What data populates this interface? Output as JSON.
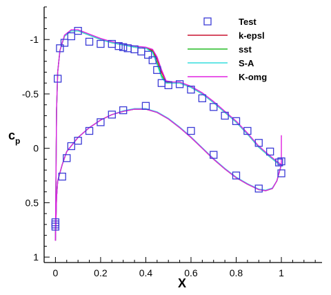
{
  "chart_data": {
    "type": "line",
    "xlabel": "X",
    "ylabel_main": "c",
    "ylabel_sub": "p",
    "xlim": [
      -0.05,
      1.18
    ],
    "ylim": [
      1.05,
      -1.3
    ],
    "y_inverted": true,
    "grid": false,
    "legend_position": "top-right",
    "x_ticks": [
      0,
      0.2,
      0.4,
      0.6,
      0.8,
      1
    ],
    "x_tick_labels": [
      "0",
      "0.2",
      "0.4",
      "0.6",
      "0.8",
      "1"
    ],
    "y_ticks": [
      -1,
      -0.5,
      0,
      0.5,
      1
    ],
    "y_tick_labels": [
      "-1",
      "-0.5",
      "0",
      "0.5",
      "1"
    ],
    "colors": {
      "test": "#3a3ad6",
      "k_epsl": "#c8102e",
      "sst": "#22bb22",
      "sa": "#33dddd",
      "k_omg": "#e020e0"
    },
    "series": [
      {
        "name": "Test",
        "kind": "marker",
        "marker": "square",
        "points": [
          [
            0.0,
            0.68
          ],
          [
            0.0,
            0.7
          ],
          [
            0.0,
            0.72
          ],
          [
            0.01,
            -0.64
          ],
          [
            0.02,
            -0.92
          ],
          [
            0.04,
            -0.97
          ],
          [
            0.07,
            -1.03
          ],
          [
            0.1,
            -1.08
          ],
          [
            0.15,
            -0.98
          ],
          [
            0.2,
            -0.96
          ],
          [
            0.25,
            -0.96
          ],
          [
            0.28,
            -0.94
          ],
          [
            0.3,
            -0.93
          ],
          [
            0.32,
            -0.92
          ],
          [
            0.35,
            -0.91
          ],
          [
            0.38,
            -0.89
          ],
          [
            0.41,
            -0.86
          ],
          [
            0.43,
            -0.81
          ],
          [
            0.45,
            -0.72
          ],
          [
            0.47,
            -0.6
          ],
          [
            0.5,
            -0.58
          ],
          [
            0.55,
            -0.59
          ],
          [
            0.6,
            -0.54
          ],
          [
            0.65,
            -0.46
          ],
          [
            0.7,
            -0.38
          ],
          [
            0.75,
            -0.3
          ],
          [
            0.8,
            -0.25
          ],
          [
            0.85,
            -0.16
          ],
          [
            0.9,
            -0.05
          ],
          [
            0.95,
            0.03
          ],
          [
            0.99,
            0.13
          ],
          [
            1.0,
            0.23
          ],
          [
            0.03,
            0.26
          ],
          [
            0.05,
            0.09
          ],
          [
            0.07,
            -0.02
          ],
          [
            0.1,
            -0.07
          ],
          [
            0.15,
            -0.16
          ],
          [
            0.2,
            -0.24
          ],
          [
            0.25,
            -0.31
          ],
          [
            0.3,
            -0.35
          ],
          [
            0.4,
            -0.39
          ],
          [
            0.6,
            -0.16
          ],
          [
            0.7,
            0.06
          ],
          [
            0.8,
            0.25
          ],
          [
            0.9,
            0.37
          ],
          [
            1.0,
            0.12
          ]
        ]
      },
      {
        "name": "k-epsl",
        "kind": "line",
        "upper": [
          [
            0.0,
            0.85
          ],
          [
            0.005,
            -0.35
          ],
          [
            0.01,
            -0.7
          ],
          [
            0.02,
            -0.9
          ],
          [
            0.04,
            -1.03
          ],
          [
            0.07,
            -1.08
          ],
          [
            0.1,
            -1.08
          ],
          [
            0.15,
            -1.04
          ],
          [
            0.2,
            -1.0
          ],
          [
            0.25,
            -0.97
          ],
          [
            0.3,
            -0.95
          ],
          [
            0.35,
            -0.93
          ],
          [
            0.4,
            -0.92
          ],
          [
            0.43,
            -0.9
          ],
          [
            0.45,
            -0.82
          ],
          [
            0.47,
            -0.7
          ],
          [
            0.49,
            -0.61
          ],
          [
            0.52,
            -0.6
          ],
          [
            0.55,
            -0.6
          ],
          [
            0.6,
            -0.56
          ],
          [
            0.65,
            -0.5
          ],
          [
            0.7,
            -0.42
          ],
          [
            0.75,
            -0.33
          ],
          [
            0.8,
            -0.24
          ],
          [
            0.85,
            -0.13
          ],
          [
            0.9,
            -0.01
          ],
          [
            0.95,
            0.08
          ],
          [
            0.98,
            0.13
          ],
          [
            1.0,
            0.15
          ]
        ],
        "lower": [
          [
            0.0,
            0.85
          ],
          [
            0.005,
            0.45
          ],
          [
            0.01,
            0.3
          ],
          [
            0.03,
            0.15
          ],
          [
            0.05,
            0.03
          ],
          [
            0.1,
            -0.1
          ],
          [
            0.15,
            -0.19
          ],
          [
            0.2,
            -0.26
          ],
          [
            0.25,
            -0.31
          ],
          [
            0.3,
            -0.34
          ],
          [
            0.35,
            -0.36
          ],
          [
            0.4,
            -0.36
          ],
          [
            0.45,
            -0.33
          ],
          [
            0.5,
            -0.27
          ],
          [
            0.55,
            -0.19
          ],
          [
            0.6,
            -0.1
          ],
          [
            0.65,
            0.0
          ],
          [
            0.7,
            0.1
          ],
          [
            0.75,
            0.19
          ],
          [
            0.8,
            0.27
          ],
          [
            0.85,
            0.33
          ],
          [
            0.9,
            0.38
          ],
          [
            0.93,
            0.39
          ],
          [
            0.96,
            0.37
          ],
          [
            0.98,
            0.3
          ],
          [
            1.0,
            0.15
          ]
        ]
      },
      {
        "name": "sst",
        "kind": "line",
        "upper": [
          [
            0.0,
            0.85
          ],
          [
            0.005,
            -0.35
          ],
          [
            0.01,
            -0.7
          ],
          [
            0.02,
            -0.9
          ],
          [
            0.04,
            -1.03
          ],
          [
            0.07,
            -1.08
          ],
          [
            0.1,
            -1.08
          ],
          [
            0.15,
            -1.04
          ],
          [
            0.2,
            -1.0
          ],
          [
            0.25,
            -0.97
          ],
          [
            0.3,
            -0.95
          ],
          [
            0.35,
            -0.93
          ],
          [
            0.4,
            -0.92
          ],
          [
            0.43,
            -0.89
          ],
          [
            0.45,
            -0.79
          ],
          [
            0.47,
            -0.67
          ],
          [
            0.49,
            -0.6
          ],
          [
            0.52,
            -0.6
          ],
          [
            0.55,
            -0.6
          ],
          [
            0.6,
            -0.56
          ],
          [
            0.65,
            -0.5
          ],
          [
            0.7,
            -0.42
          ],
          [
            0.75,
            -0.33
          ],
          [
            0.8,
            -0.24
          ],
          [
            0.85,
            -0.13
          ],
          [
            0.9,
            -0.01
          ],
          [
            0.95,
            0.08
          ],
          [
            0.98,
            0.13
          ],
          [
            1.0,
            0.15
          ]
        ],
        "lower": [
          [
            0.0,
            0.85
          ],
          [
            0.005,
            0.45
          ],
          [
            0.01,
            0.3
          ],
          [
            0.03,
            0.15
          ],
          [
            0.05,
            0.03
          ],
          [
            0.1,
            -0.1
          ],
          [
            0.15,
            -0.19
          ],
          [
            0.2,
            -0.26
          ],
          [
            0.25,
            -0.31
          ],
          [
            0.3,
            -0.34
          ],
          [
            0.35,
            -0.36
          ],
          [
            0.4,
            -0.36
          ],
          [
            0.45,
            -0.33
          ],
          [
            0.5,
            -0.27
          ],
          [
            0.55,
            -0.19
          ],
          [
            0.6,
            -0.1
          ],
          [
            0.65,
            0.0
          ],
          [
            0.7,
            0.1
          ],
          [
            0.75,
            0.19
          ],
          [
            0.8,
            0.27
          ],
          [
            0.85,
            0.33
          ],
          [
            0.9,
            0.38
          ],
          [
            0.93,
            0.39
          ],
          [
            0.96,
            0.37
          ],
          [
            0.98,
            0.3
          ],
          [
            1.0,
            0.15
          ]
        ]
      },
      {
        "name": "S-A",
        "kind": "line",
        "upper": [
          [
            0.0,
            0.85
          ],
          [
            0.005,
            -0.35
          ],
          [
            0.01,
            -0.7
          ],
          [
            0.02,
            -0.9
          ],
          [
            0.04,
            -1.03
          ],
          [
            0.07,
            -1.08
          ],
          [
            0.1,
            -1.08
          ],
          [
            0.15,
            -1.04
          ],
          [
            0.2,
            -1.0
          ],
          [
            0.25,
            -0.97
          ],
          [
            0.3,
            -0.95
          ],
          [
            0.35,
            -0.93
          ],
          [
            0.4,
            -0.92
          ],
          [
            0.43,
            -0.88
          ],
          [
            0.45,
            -0.77
          ],
          [
            0.47,
            -0.65
          ],
          [
            0.49,
            -0.6
          ],
          [
            0.52,
            -0.6
          ],
          [
            0.55,
            -0.6
          ],
          [
            0.6,
            -0.56
          ],
          [
            0.65,
            -0.5
          ],
          [
            0.7,
            -0.42
          ],
          [
            0.75,
            -0.33
          ],
          [
            0.8,
            -0.24
          ],
          [
            0.85,
            -0.13
          ],
          [
            0.9,
            -0.01
          ],
          [
            0.95,
            0.08
          ],
          [
            0.98,
            0.13
          ],
          [
            1.0,
            0.15
          ]
        ],
        "lower": [
          [
            0.0,
            0.85
          ],
          [
            0.005,
            0.45
          ],
          [
            0.01,
            0.3
          ],
          [
            0.03,
            0.15
          ],
          [
            0.05,
            0.03
          ],
          [
            0.1,
            -0.1
          ],
          [
            0.15,
            -0.19
          ],
          [
            0.2,
            -0.26
          ],
          [
            0.25,
            -0.31
          ],
          [
            0.3,
            -0.345
          ],
          [
            0.35,
            -0.365
          ],
          [
            0.4,
            -0.365
          ],
          [
            0.45,
            -0.335
          ],
          [
            0.5,
            -0.275
          ],
          [
            0.55,
            -0.195
          ],
          [
            0.6,
            -0.105
          ],
          [
            0.65,
            -0.005
          ],
          [
            0.7,
            0.095
          ],
          [
            0.75,
            0.185
          ],
          [
            0.8,
            0.265
          ],
          [
            0.85,
            0.325
          ],
          [
            0.9,
            0.375
          ],
          [
            0.93,
            0.385
          ],
          [
            0.96,
            0.365
          ],
          [
            0.98,
            0.3
          ],
          [
            1.0,
            0.15
          ]
        ]
      },
      {
        "name": "K-omg",
        "kind": "line",
        "upper": [
          [
            0.0,
            0.85
          ],
          [
            0.005,
            -0.35
          ],
          [
            0.01,
            -0.7
          ],
          [
            0.02,
            -0.9
          ],
          [
            0.04,
            -1.04
          ],
          [
            0.07,
            -1.09
          ],
          [
            0.1,
            -1.09
          ],
          [
            0.15,
            -1.05
          ],
          [
            0.2,
            -1.01
          ],
          [
            0.25,
            -0.98
          ],
          [
            0.3,
            -0.96
          ],
          [
            0.35,
            -0.94
          ],
          [
            0.4,
            -0.93
          ],
          [
            0.43,
            -0.91
          ],
          [
            0.45,
            -0.84
          ],
          [
            0.47,
            -0.72
          ],
          [
            0.49,
            -0.62
          ],
          [
            0.52,
            -0.61
          ],
          [
            0.55,
            -0.61
          ],
          [
            0.6,
            -0.57
          ],
          [
            0.65,
            -0.51
          ],
          [
            0.7,
            -0.43
          ],
          [
            0.75,
            -0.34
          ],
          [
            0.8,
            -0.25
          ],
          [
            0.85,
            -0.14
          ],
          [
            0.9,
            -0.02
          ],
          [
            0.95,
            0.07
          ],
          [
            0.98,
            0.12
          ],
          [
            1.0,
            0.15
          ],
          [
            1.0,
            -0.12
          ]
        ],
        "lower": [
          [
            0.0,
            0.85
          ],
          [
            0.005,
            0.45
          ],
          [
            0.01,
            0.3
          ],
          [
            0.03,
            0.15
          ],
          [
            0.05,
            0.03
          ],
          [
            0.1,
            -0.1
          ],
          [
            0.15,
            -0.19
          ],
          [
            0.2,
            -0.26
          ],
          [
            0.25,
            -0.31
          ],
          [
            0.3,
            -0.34
          ],
          [
            0.35,
            -0.36
          ],
          [
            0.4,
            -0.36
          ],
          [
            0.45,
            -0.33
          ],
          [
            0.5,
            -0.27
          ],
          [
            0.55,
            -0.19
          ],
          [
            0.6,
            -0.1
          ],
          [
            0.65,
            0.0
          ],
          [
            0.7,
            0.1
          ],
          [
            0.75,
            0.19
          ],
          [
            0.8,
            0.27
          ],
          [
            0.85,
            0.33
          ],
          [
            0.9,
            0.38
          ],
          [
            0.93,
            0.39
          ],
          [
            0.96,
            0.37
          ],
          [
            0.98,
            0.3
          ],
          [
            1.0,
            0.15
          ]
        ]
      }
    ]
  }
}
